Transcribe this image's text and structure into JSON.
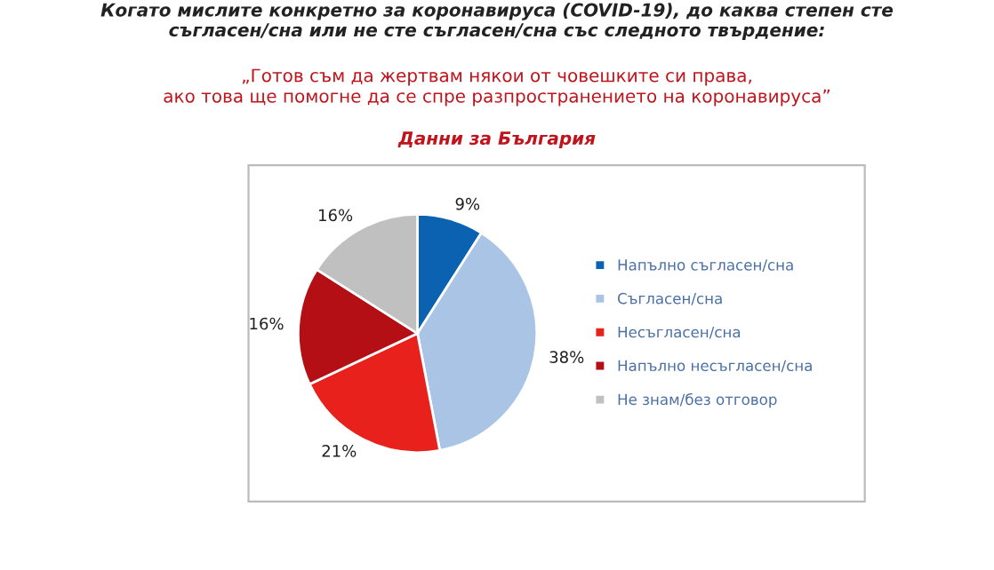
{
  "chart_data": {
    "type": "pie",
    "title": "Когато мислите конкретно за коронавируса (COVID-19), до каква степен сте\nсъгласен/сна или не сте съгласен/сна със следното твърдение:",
    "subtitle": "„Готов съм да жертвам някои от човешките си права,\nако това ще помогне да се спре разпространението на коронавируса”",
    "annotations": [
      "Данни за България"
    ],
    "categories": [
      "Напълно съгласен/сна",
      "Съгласен/сна",
      "Несъгласен/сна",
      "Напълно несъгласен/сна",
      "Не знам/без отговор"
    ],
    "values": [
      9,
      38,
      21,
      16,
      16
    ],
    "colors": [
      "#0b62b0",
      "#a9c4e4",
      "#e8211c",
      "#b30f14",
      "#c0c0c0"
    ],
    "value_labels": [
      "9%",
      "38%",
      "21%",
      "16%",
      "16%"
    ],
    "legend": "right"
  }
}
